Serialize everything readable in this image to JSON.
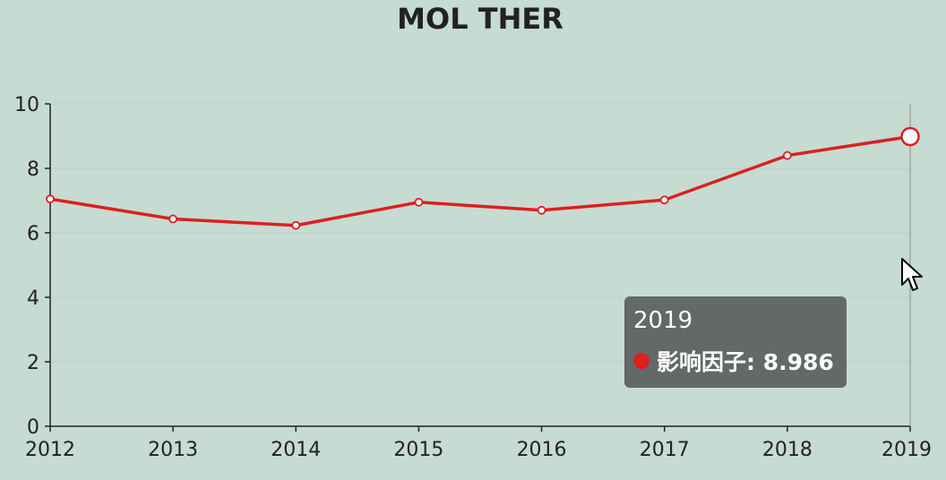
{
  "chart_data": {
    "type": "line",
    "title": "MOL THER",
    "xlabel": "",
    "ylabel": "",
    "categories": [
      "2012",
      "2013",
      "2014",
      "2015",
      "2016",
      "2017",
      "2018",
      "2019"
    ],
    "series": [
      {
        "name": "影响因子",
        "values": [
          7.05,
          6.43,
          6.23,
          6.95,
          6.7,
          7.02,
          8.4,
          8.986
        ]
      }
    ],
    "ylim": [
      0,
      10
    ],
    "yticks": [
      0,
      2,
      4,
      6,
      8,
      10
    ],
    "grid": true,
    "legend": "none",
    "colors": {
      "line": "#dc1f1f",
      "background": "#c6dbd2",
      "axis": "#222222",
      "grid": "#b9d0c6"
    }
  },
  "tooltip": {
    "title": "2019",
    "label": "影响因子: 8.986"
  }
}
